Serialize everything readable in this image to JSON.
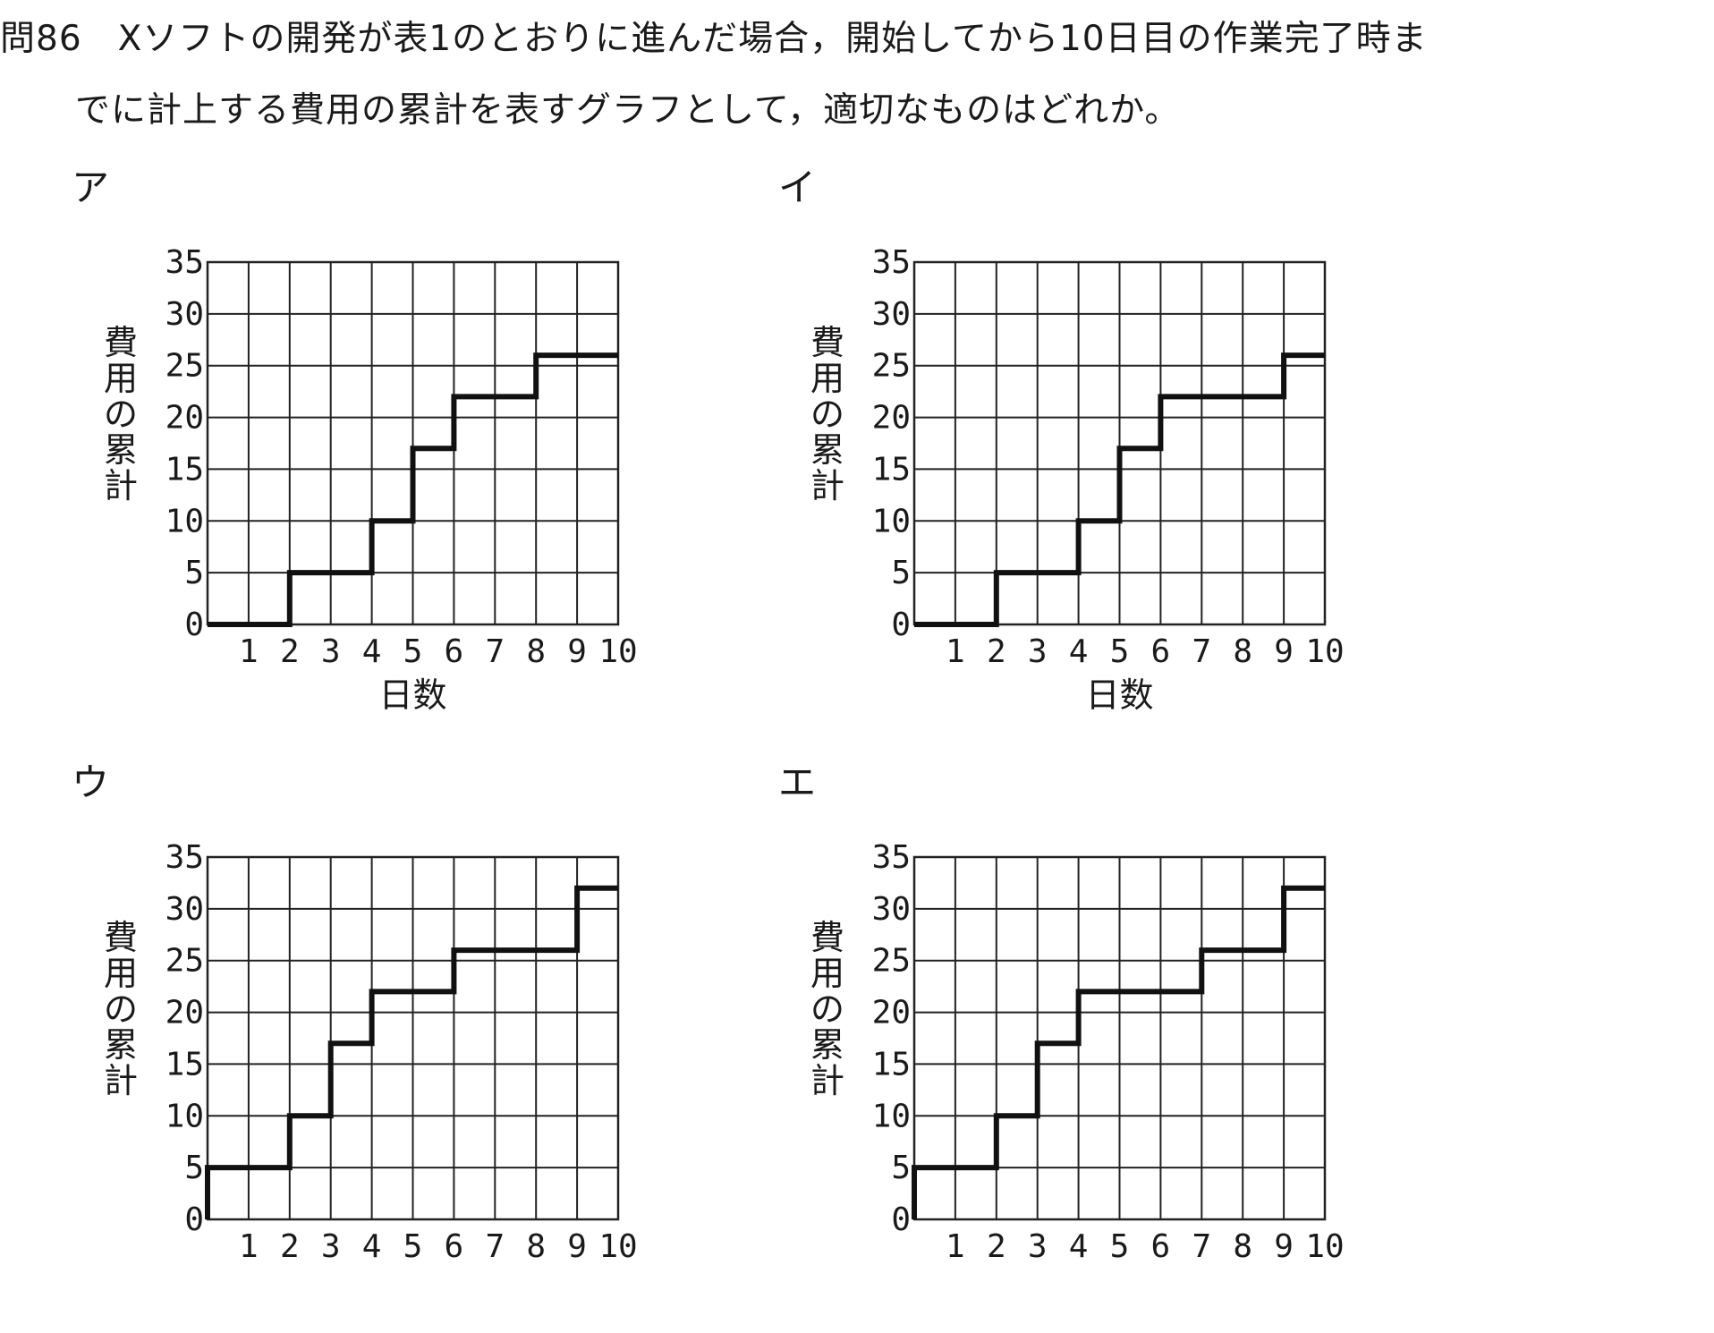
{
  "question": {
    "line1": "問86　Xソフトの開発が表1のとおりに進んだ場合，開始してから10日目の作業完了時ま",
    "line2": "でに計上する費用の累計を表すグラフとして，適切なものはどれか。"
  },
  "chart_data": [
    {
      "type": "line",
      "label": "ア",
      "xlabel": "日数",
      "ylabel": "費用の累計",
      "x": [
        0,
        2,
        2,
        4,
        4,
        5,
        5,
        6,
        6,
        8,
        8,
        10
      ],
      "y": [
        0,
        0,
        5,
        5,
        10,
        10,
        17,
        17,
        22,
        22,
        26,
        26
      ],
      "xlim": [
        0,
        10
      ],
      "ylim": [
        0,
        35
      ],
      "xticks": [
        "1",
        "2",
        "3",
        "4",
        "5",
        "6",
        "7",
        "8",
        "9",
        "10"
      ],
      "yticks": [
        "0",
        "5",
        "10",
        "15",
        "20",
        "25",
        "30",
        "35"
      ],
      "grid": true
    },
    {
      "type": "line",
      "label": "イ",
      "xlabel": "日数",
      "ylabel": "費用の累計",
      "x": [
        0,
        2,
        2,
        4,
        4,
        5,
        5,
        6,
        6,
        9,
        9,
        10
      ],
      "y": [
        0,
        0,
        5,
        5,
        10,
        10,
        17,
        17,
        22,
        22,
        26,
        26
      ],
      "xlim": [
        0,
        10
      ],
      "ylim": [
        0,
        35
      ],
      "xticks": [
        "1",
        "2",
        "3",
        "4",
        "5",
        "6",
        "7",
        "8",
        "9",
        "10"
      ],
      "yticks": [
        "0",
        "5",
        "10",
        "15",
        "20",
        "25",
        "30",
        "35"
      ],
      "grid": true
    },
    {
      "type": "line",
      "label": "ウ",
      "xlabel": "",
      "ylabel": "費用の累計",
      "x": [
        0,
        0,
        2,
        2,
        3,
        3,
        4,
        4,
        6,
        6,
        9,
        9,
        10
      ],
      "y": [
        0,
        5,
        5,
        10,
        10,
        17,
        17,
        22,
        22,
        26,
        26,
        32,
        32
      ],
      "xlim": [
        0,
        10
      ],
      "ylim": [
        0,
        35
      ],
      "xticks": [
        "1",
        "2",
        "3",
        "4",
        "5",
        "6",
        "7",
        "8",
        "9",
        "10"
      ],
      "yticks": [
        "0",
        "5",
        "10",
        "15",
        "20",
        "25",
        "30",
        "35"
      ],
      "grid": true
    },
    {
      "type": "line",
      "label": "エ",
      "xlabel": "",
      "ylabel": "費用の累計",
      "x": [
        0,
        0,
        2,
        2,
        3,
        3,
        4,
        4,
        7,
        7,
        9,
        9,
        10
      ],
      "y": [
        0,
        5,
        5,
        10,
        10,
        17,
        17,
        22,
        22,
        26,
        26,
        32,
        32
      ],
      "xlim": [
        0,
        10
      ],
      "ylim": [
        0,
        35
      ],
      "xticks": [
        "1",
        "2",
        "3",
        "4",
        "5",
        "6",
        "7",
        "8",
        "9",
        "10"
      ],
      "yticks": [
        "0",
        "5",
        "10",
        "15",
        "20",
        "25",
        "30",
        "35"
      ],
      "grid": true
    }
  ]
}
